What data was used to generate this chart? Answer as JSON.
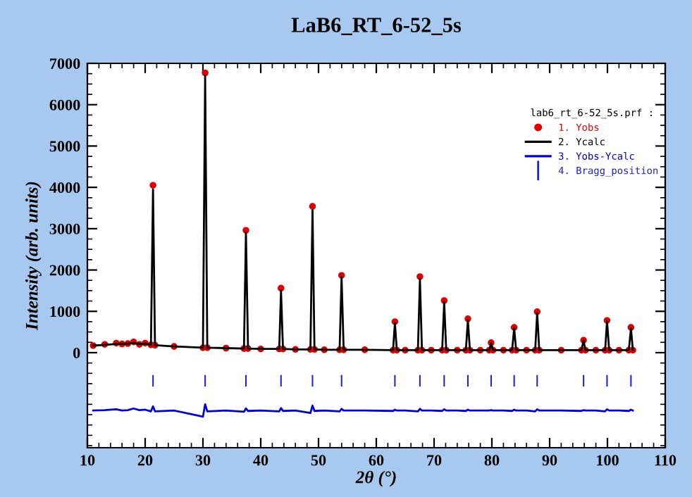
{
  "chart_data": {
    "type": "line",
    "title": "LaB6_RT_6-52_5s",
    "xlabel": "2θ (°)",
    "ylabel": "Intensity (arb. units)",
    "legend_title": "lab6_rt_6-52_5s.prf :",
    "xlim": [
      10,
      110
    ],
    "ylim": [
      -2300,
      7000
    ],
    "xticks": [
      10,
      20,
      30,
      40,
      50,
      60,
      70,
      80,
      90,
      100,
      110
    ],
    "yticks": [
      0,
      1000,
      2000,
      3000,
      4000,
      5000,
      6000,
      7000
    ],
    "grid": false,
    "legend": "top right",
    "series": [
      {
        "name": "1. Yobs",
        "type": "scatter",
        "marker": "circle",
        "color": "#e00000",
        "x": [
          11,
          13,
          15,
          16,
          17,
          18,
          19,
          20,
          21.0,
          21.36,
          21.7,
          25,
          30.0,
          30.38,
          30.75,
          34,
          37.1,
          37.44,
          37.8,
          40,
          43.2,
          43.51,
          43.85,
          46,
          48.6,
          48.96,
          49.3,
          51,
          53.65,
          53.99,
          54.35,
          58,
          62.9,
          63.22,
          63.55,
          65,
          67.2,
          67.55,
          67.9,
          69.5,
          71.4,
          71.75,
          72.1,
          74,
          75.5,
          75.85,
          76.2,
          78,
          79.55,
          79.87,
          80.2,
          82,
          83.5,
          83.86,
          84.2,
          86,
          87.5,
          87.84,
          88.2,
          92,
          95.5,
          95.87,
          96.2,
          98,
          99.6,
          99.93,
          100.3,
          102,
          103.7,
          104.07,
          104.4
        ],
        "values": [
          170,
          200,
          230,
          210,
          220,
          260,
          200,
          230,
          190,
          4050,
          180,
          150,
          120,
          6770,
          120,
          110,
          100,
          2960,
          100,
          90,
          90,
          1560,
          90,
          80,
          80,
          3540,
          80,
          70,
          70,
          1870,
          70,
          70,
          60,
          750,
          60,
          60,
          60,
          1840,
          60,
          60,
          60,
          1260,
          60,
          60,
          60,
          820,
          60,
          60,
          60,
          240,
          60,
          60,
          60,
          610,
          60,
          60,
          60,
          990,
          60,
          60,
          60,
          300,
          60,
          60,
          60,
          780,
          60,
          60,
          60,
          610,
          60
        ]
      },
      {
        "name": "2. Ycalc",
        "color": "#000000",
        "x": [
          11,
          13,
          15,
          16,
          17,
          18,
          19,
          20,
          21.0,
          21.36,
          21.7,
          25,
          30.0,
          30.38,
          30.75,
          34,
          37.1,
          37.44,
          37.8,
          40,
          43.2,
          43.51,
          43.85,
          46,
          48.6,
          48.96,
          49.3,
          51,
          53.65,
          53.99,
          54.35,
          58,
          62.9,
          63.22,
          63.55,
          65,
          67.2,
          67.55,
          67.9,
          69.5,
          71.4,
          71.75,
          72.1,
          74,
          75.5,
          75.85,
          76.2,
          78,
          79.55,
          79.87,
          80.2,
          82,
          83.5,
          83.86,
          84.2,
          86,
          87.5,
          87.84,
          88.2,
          92,
          95.5,
          95.87,
          96.2,
          98,
          99.6,
          99.93,
          100.3,
          102,
          103.7,
          104.07,
          104.4
        ],
        "values": [
          170,
          190,
          210,
          210,
          220,
          230,
          210,
          220,
          190,
          3950,
          180,
          150,
          120,
          6700,
          120,
          110,
          100,
          2900,
          100,
          90,
          90,
          1500,
          90,
          80,
          80,
          3450,
          80,
          70,
          70,
          1830,
          70,
          70,
          60,
          720,
          60,
          60,
          60,
          1780,
          60,
          60,
          60,
          1220,
          60,
          60,
          60,
          790,
          60,
          60,
          60,
          230,
          60,
          60,
          60,
          590,
          60,
          60,
          60,
          960,
          60,
          60,
          60,
          290,
          60,
          60,
          60,
          760,
          60,
          60,
          60,
          590,
          60
        ]
      },
      {
        "name": "3. Yobs-Ycalc",
        "type": "line",
        "color": "#0000e0",
        "x": [
          11,
          13,
          15,
          16,
          17,
          18,
          19,
          20,
          21.0,
          21.36,
          21.7,
          25,
          30.0,
          30.38,
          30.75,
          34,
          37.1,
          37.44,
          37.8,
          40,
          43.2,
          43.51,
          43.85,
          46,
          48.6,
          48.96,
          49.3,
          51,
          53.65,
          53.99,
          54.35,
          58,
          62.9,
          63.22,
          63.55,
          65,
          67.2,
          67.55,
          67.9,
          69.5,
          71.4,
          71.75,
          72.1,
          74,
          75.5,
          75.85,
          76.2,
          78,
          79.55,
          79.87,
          80.2,
          82,
          83.5,
          83.86,
          84.2,
          86,
          87.5,
          87.84,
          88.2,
          92,
          95.5,
          95.87,
          96.2,
          98,
          99.6,
          99.93,
          100.3,
          102,
          103.7,
          104.07,
          104.4
        ],
        "values": [
          -1400,
          -1390,
          -1370,
          -1400,
          -1390,
          -1350,
          -1390,
          -1380,
          -1420,
          -1300,
          -1420,
          -1400,
          -1550,
          -1250,
          -1420,
          -1400,
          -1430,
          -1350,
          -1410,
          -1400,
          -1420,
          -1340,
          -1410,
          -1400,
          -1460,
          -1280,
          -1410,
          -1400,
          -1420,
          -1360,
          -1400,
          -1400,
          -1410,
          -1380,
          -1400,
          -1400,
          -1420,
          -1360,
          -1400,
          -1400,
          -1410,
          -1370,
          -1400,
          -1400,
          -1410,
          -1380,
          -1400,
          -1400,
          -1400,
          -1390,
          -1400,
          -1400,
          -1410,
          -1380,
          -1400,
          -1400,
          -1420,
          -1370,
          -1400,
          -1400,
          -1410,
          -1390,
          -1400,
          -1400,
          -1420,
          -1370,
          -1400,
          -1400,
          -1410,
          -1380,
          -1400
        ]
      },
      {
        "name": "4. Bragg_position",
        "type": "bar",
        "color": "#2020e0",
        "x": [
          21.36,
          30.38,
          37.44,
          43.51,
          48.96,
          53.99,
          63.22,
          67.55,
          71.75,
          75.85,
          79.87,
          83.86,
          87.84,
          95.87,
          99.93,
          104.07
        ],
        "base": [
          -820,
          -820,
          -820,
          -820,
          -820,
          -820,
          -820,
          -820,
          -820,
          -820,
          -820,
          -820,
          -820,
          -820,
          -820,
          -820
        ],
        "values": [
          280,
          280,
          280,
          280,
          280,
          280,
          280,
          280,
          280,
          280,
          280,
          280,
          280,
          280,
          280,
          280
        ]
      }
    ]
  }
}
